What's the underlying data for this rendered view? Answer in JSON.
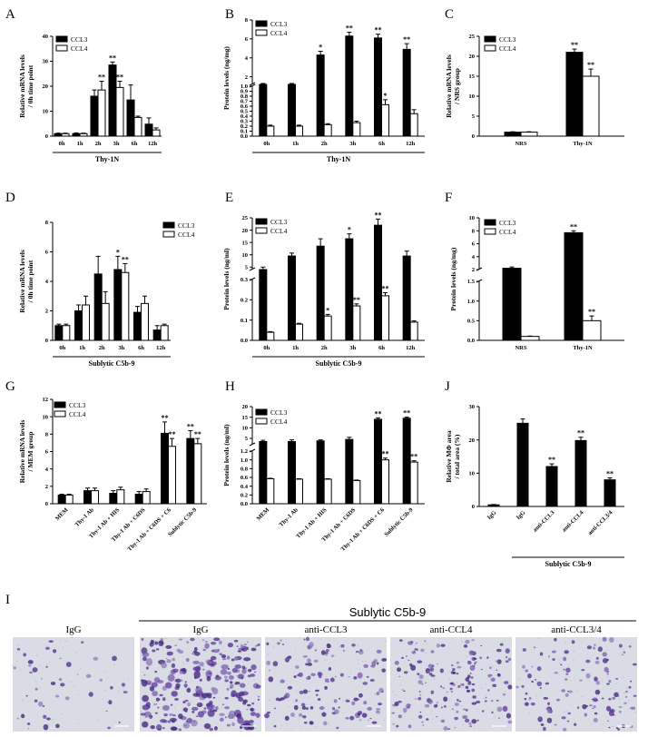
{
  "chart_data": [
    {
      "id": "A",
      "type": "bar",
      "panel_letter": "A",
      "ylabel": "Relative mRNA levels\n/ 0h time point",
      "ylim": [
        0,
        40
      ],
      "yticks": [
        "0",
        "10",
        "20",
        "30",
        "40"
      ],
      "ytick_values": [
        0,
        10,
        20,
        30,
        40
      ],
      "categories": [
        "0h",
        "1h",
        "2h",
        "3h",
        "6h",
        "12h"
      ],
      "series": [
        {
          "name": "CCL3",
          "color": "#000000",
          "values": [
            1,
            1,
            16,
            28.5,
            14.5,
            4.8
          ],
          "errors": [
            0.2,
            0.3,
            2.5,
            1.2,
            6,
            2.5
          ],
          "sig": [
            "",
            "",
            "",
            "**",
            "",
            ""
          ]
        },
        {
          "name": "CCL4",
          "color": "#ffffff",
          "values": [
            1,
            1,
            18.5,
            19.5,
            7.5,
            2.5
          ],
          "errors": [
            0.2,
            0.2,
            3.5,
            2.5,
            0.5,
            0.8
          ],
          "sig": [
            "",
            "",
            "**",
            "**",
            "",
            ""
          ]
        }
      ],
      "group_label": "Thy-1N",
      "legend": "top-left"
    },
    {
      "id": "B",
      "type": "bar",
      "panel_letter": "B",
      "ylabel": "Protein levels (ng/mg)",
      "broken": true,
      "yticks": [
        "0.0",
        "0.1",
        "0.2",
        "0.3",
        "0.4",
        "0.5",
        "0.6",
        "0.7",
        "0.8",
        "0.9",
        "1.0",
        "2",
        "4",
        "6",
        "8"
      ],
      "ytick_values": [
        0,
        0.1,
        0.2,
        0.3,
        0.4,
        0.5,
        0.6,
        0.7,
        0.8,
        0.9,
        1.0,
        2,
        4,
        6,
        8
      ],
      "categories": [
        "0h",
        "1h",
        "2h",
        "3h",
        "6h",
        "12h"
      ],
      "series": [
        {
          "name": "CCL3",
          "color": "#000000",
          "values": [
            1.2,
            1.2,
            4.3,
            6.3,
            6.1,
            4.9
          ],
          "errors": [
            0.1,
            0.1,
            0.4,
            0.4,
            0.4,
            0.6
          ],
          "sig": [
            "",
            "",
            "*",
            "**",
            "**",
            "**"
          ]
        },
        {
          "name": "CCL4",
          "color": "#ffffff",
          "values": [
            0.2,
            0.2,
            0.23,
            0.27,
            0.63,
            0.45
          ],
          "errors": [
            0.02,
            0.02,
            0.02,
            0.03,
            0.1,
            0.08
          ],
          "sig": [
            "",
            "",
            "",
            "",
            "*",
            ""
          ]
        }
      ],
      "group_label": "Thy-1N",
      "legend": "top-left"
    },
    {
      "id": "C",
      "type": "bar",
      "panel_letter": "C",
      "ylabel": "Relative mRNA levels\n/ NRS group",
      "ylim": [
        0,
        25
      ],
      "yticks": [
        "0",
        "5",
        "10",
        "15",
        "20",
        "25"
      ],
      "ytick_values": [
        0,
        5,
        10,
        15,
        20,
        25
      ],
      "categories": [
        "NRS",
        "Thy-1N"
      ],
      "series": [
        {
          "name": "CCL3",
          "color": "#000000",
          "values": [
            1,
            21
          ],
          "errors": [
            0.1,
            0.8
          ],
          "sig": [
            "",
            "**"
          ]
        },
        {
          "name": "CCL4",
          "color": "#ffffff",
          "values": [
            1,
            15
          ],
          "errors": [
            0.1,
            1.8
          ],
          "sig": [
            "",
            "**"
          ]
        }
      ],
      "legend": "top-left"
    },
    {
      "id": "D",
      "type": "bar",
      "panel_letter": "D",
      "ylabel": "Relative mRNA levels\n/ 0h time point",
      "ylim": [
        0,
        8
      ],
      "yticks": [
        "0",
        "2",
        "4",
        "6",
        "8"
      ],
      "ytick_values": [
        0,
        2,
        4,
        6,
        8
      ],
      "categories": [
        "0h",
        "1h",
        "2h",
        "3h",
        "6h",
        "12h"
      ],
      "series": [
        {
          "name": "CCL3",
          "color": "#000000",
          "values": [
            1,
            2,
            4.5,
            4.8,
            1.9,
            0.7
          ],
          "errors": [
            0.1,
            0.4,
            1.2,
            0.9,
            0.4,
            0.3
          ],
          "sig": [
            "",
            "",
            "",
            "*",
            "",
            ""
          ]
        },
        {
          "name": "CCL4",
          "color": "#ffffff",
          "values": [
            1,
            2.4,
            2.5,
            4.6,
            2.5,
            1
          ],
          "errors": [
            0.1,
            0.6,
            0.8,
            0.6,
            0.5,
            0.1
          ],
          "sig": [
            "",
            "",
            "",
            "**",
            "",
            ""
          ]
        }
      ],
      "group_label": "Sublytic C5b-9",
      "legend": "top-right"
    },
    {
      "id": "E",
      "type": "bar",
      "panel_letter": "E",
      "ylabel": "Protein levels (ng/ml)",
      "broken": true,
      "yticks": [
        "0.0",
        "0.1",
        "0.2",
        "0.3",
        "5",
        "10",
        "15",
        "20",
        "25"
      ],
      "ytick_values": [
        0,
        0.1,
        0.2,
        0.3,
        5,
        10,
        15,
        20,
        25
      ],
      "categories": [
        "0h",
        "1h",
        "2h",
        "3h",
        "6h",
        "12h"
      ],
      "series": [
        {
          "name": "CCL3",
          "color": "#000000",
          "values": [
            4,
            9.5,
            13.5,
            16.5,
            22,
            9.5
          ],
          "errors": [
            1,
            1.2,
            3,
            2,
            2.5,
            2
          ],
          "sig": [
            "",
            "",
            "",
            "*",
            "**",
            ""
          ]
        },
        {
          "name": "CCL4",
          "color": "#ffffff",
          "values": [
            0.04,
            0.08,
            0.12,
            0.17,
            0.22,
            0.09
          ],
          "errors": [
            0.003,
            0.004,
            0.008,
            0.01,
            0.015,
            0.006
          ],
          "sig": [
            "",
            "",
            "*",
            "**",
            "**",
            ""
          ]
        }
      ],
      "group_label": "Sublytic C5b-9",
      "legend": "top-left"
    },
    {
      "id": "F",
      "type": "bar",
      "panel_letter": "F",
      "ylabel": "Protein levels (ng/mg)",
      "broken": true,
      "yticks": [
        "0.0",
        "0.5",
        "1.0",
        "1.5",
        "2",
        "4",
        "6",
        "8",
        "10"
      ],
      "ytick_values": [
        0,
        0.5,
        1.0,
        1.5,
        2,
        4,
        6,
        8,
        10
      ],
      "categories": [
        "NRS",
        "Thy-1N"
      ],
      "series": [
        {
          "name": "CCL3",
          "color": "#000000",
          "values": [
            2.2,
            7.7
          ],
          "errors": [
            0.2,
            0.3
          ],
          "sig": [
            "",
            "**"
          ]
        },
        {
          "name": "CCL4",
          "color": "#ffffff",
          "values": [
            0.1,
            0.5
          ],
          "errors": [
            0.01,
            0.12
          ],
          "sig": [
            "",
            "**"
          ]
        }
      ],
      "legend": "top-left"
    },
    {
      "id": "G",
      "type": "bar",
      "panel_letter": "G",
      "ylabel": "Relative mRNA levels\n/ MEM group",
      "ylim": [
        0,
        12
      ],
      "yticks": [
        "0",
        "2",
        "4",
        "6",
        "8",
        "10",
        "12"
      ],
      "ytick_values": [
        0,
        2,
        4,
        6,
        8,
        10,
        12
      ],
      "categories": [
        "MEM",
        "Thy-1 Ab",
        "Thy-1 Ab + HIS",
        "Thy-1 Ab + C6DS",
        "Thy-1 Ab + C6DS + C6",
        "Sublytic C5b-9"
      ],
      "series": [
        {
          "name": "CCL3",
          "color": "#000000",
          "values": [
            1,
            1.5,
            1.2,
            1.1,
            8.1,
            7.5
          ],
          "errors": [
            0.1,
            0.3,
            0.3,
            0.3,
            1.3,
            0.9
          ],
          "sig": [
            "",
            "",
            "",
            "",
            "**",
            "**"
          ]
        },
        {
          "name": "CCL4",
          "color": "#ffffff",
          "values": [
            1,
            1.5,
            1.6,
            1.4,
            6.6,
            6.9
          ],
          "errors": [
            0.1,
            0.3,
            0.3,
            0.3,
            0.9,
            0.6
          ],
          "sig": [
            "",
            "",
            "",
            "",
            "**",
            "**"
          ]
        }
      ],
      "legend": "top-left"
    },
    {
      "id": "H",
      "type": "bar",
      "panel_letter": "H",
      "ylabel": "Protein levels (ng/ml)",
      "broken": true,
      "yticks": [
        "0.0",
        "0.2",
        "0.4",
        "0.6",
        "0.8",
        "1.0",
        "1.2",
        "5",
        "10",
        "15",
        "20"
      ],
      "ytick_values": [
        0,
        0.2,
        0.4,
        0.6,
        0.8,
        1.0,
        1.2,
        5,
        10,
        15,
        20
      ],
      "categories": [
        "MEM",
        "Thy-1 Ab",
        "Thy-1 Ab + HIS",
        "Thy-1 Ab + C6DS",
        "Thy-1 Ab + C6DS + C6",
        "Sublytic C5b-9"
      ],
      "series": [
        {
          "name": "CCL3",
          "color": "#000000",
          "values": [
            3.5,
            3.5,
            3.8,
            4.5,
            14,
            14.5
          ],
          "errors": [
            0.6,
            0.8,
            0.5,
            1,
            0.7,
            0.5
          ],
          "sig": [
            "",
            "",
            "",
            "",
            "**",
            "**"
          ]
        },
        {
          "name": "CCL4",
          "color": "#ffffff",
          "values": [
            0.57,
            0.56,
            0.56,
            0.53,
            1.0,
            0.95
          ],
          "errors": [
            0.01,
            0.01,
            0.01,
            0.01,
            0.04,
            0.03
          ],
          "sig": [
            "",
            "",
            "",
            "",
            "**",
            "**"
          ]
        }
      ],
      "legend": "top-left"
    },
    {
      "id": "J",
      "type": "bar",
      "panel_letter": "J",
      "ylabel": "Relative MΦ area\n/ total area (%)",
      "ylim": [
        0,
        30
      ],
      "yticks": [
        "0",
        "10",
        "20",
        "30"
      ],
      "ytick_values": [
        0,
        10,
        20,
        30
      ],
      "categories": [
        "IgG",
        "IgG",
        "anti-CCL3",
        "anti-CCL4",
        "anti-CCL3/4"
      ],
      "series": [
        {
          "name": "",
          "color": "#000000",
          "values": [
            0.5,
            25,
            12,
            19.8,
            8
          ],
          "errors": [
            0.1,
            1.3,
            0.8,
            1,
            0.6
          ],
          "sig": [
            "",
            "",
            "**",
            "**",
            "**"
          ]
        }
      ],
      "group_label": "Sublytic C5b-9",
      "group_start": 1
    }
  ],
  "micrographs": {
    "panel_letter": "I",
    "group_label": "Sublytic C5b-9",
    "labels": [
      "IgG",
      "IgG",
      "anti-CCL3",
      "anti-CCL4",
      "anti-CCL3/4"
    ],
    "density": [
      0.12,
      1.0,
      0.45,
      0.6,
      0.4
    ]
  }
}
